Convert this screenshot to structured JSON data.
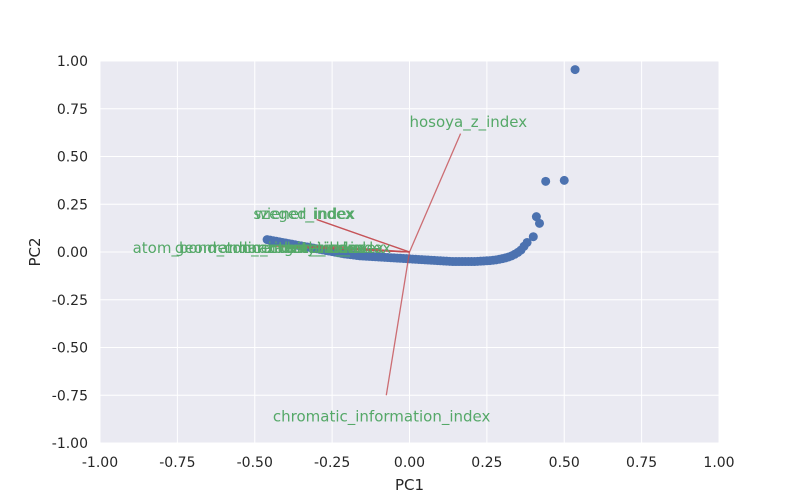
{
  "chart_data": {
    "type": "scatter",
    "title": "",
    "xlabel": "PC1",
    "ylabel": "PC2",
    "xlim": [
      -1.0,
      1.0
    ],
    "ylim": [
      -1.0,
      1.0
    ],
    "x_ticks": [
      "-1.00",
      "-0.75",
      "-0.50",
      "-0.25",
      "0.00",
      "0.25",
      "0.50",
      "0.75",
      "1.00"
    ],
    "y_ticks": [
      "1.00",
      "0.75",
      "0.50",
      "0.25",
      "0.00",
      "-0.25",
      "-0.50",
      "-0.75",
      "-1.00"
    ],
    "x_tick_values": [
      -1.0,
      -0.75,
      -0.5,
      -0.25,
      0.0,
      0.25,
      0.5,
      0.75,
      1.0
    ],
    "y_tick_values": [
      1.0,
      0.75,
      0.5,
      0.25,
      0.0,
      -0.25,
      -0.5,
      -0.75,
      -1.0
    ],
    "grid": true,
    "style": "seaborn-darkgrid",
    "colors": {
      "background": "#eaeaf2",
      "grid": "#ffffff",
      "points": "#4c72b0",
      "loadings": "#c44e52",
      "labels": "#55a868"
    },
    "points": {
      "x": [
        -0.46,
        -0.45,
        -0.44,
        -0.43,
        -0.42,
        -0.41,
        -0.4,
        -0.39,
        -0.38,
        -0.37,
        -0.36,
        -0.35,
        -0.34,
        -0.33,
        -0.32,
        -0.31,
        -0.3,
        -0.29,
        -0.28,
        -0.27,
        -0.26,
        -0.25,
        -0.24,
        -0.23,
        -0.22,
        -0.21,
        -0.2,
        -0.19,
        -0.18,
        -0.17,
        -0.16,
        -0.15,
        -0.14,
        -0.13,
        -0.12,
        -0.11,
        -0.1,
        -0.09,
        -0.08,
        -0.07,
        -0.06,
        -0.05,
        -0.04,
        -0.03,
        -0.02,
        -0.01,
        0.0,
        0.01,
        0.02,
        0.03,
        0.04,
        0.05,
        0.06,
        0.07,
        0.08,
        0.09,
        0.1,
        0.11,
        0.12,
        0.13,
        0.14,
        0.15,
        0.16,
        0.17,
        0.18,
        0.19,
        0.2,
        0.21,
        0.22,
        0.23,
        0.24,
        0.25,
        0.26,
        0.27,
        0.28,
        0.29,
        0.3,
        0.31,
        0.32,
        0.33,
        0.34,
        0.35,
        0.36,
        0.37,
        0.38,
        0.4,
        0.41,
        0.42,
        0.44,
        0.5,
        0.535
      ],
      "y": [
        0.065,
        0.062,
        0.059,
        0.056,
        0.053,
        0.05,
        0.047,
        0.044,
        0.041,
        0.038,
        0.035,
        0.032,
        0.029,
        0.026,
        0.023,
        0.02,
        0.017,
        0.014,
        0.011,
        0.008,
        0.005,
        0.002,
        -0.001,
        -0.004,
        -0.007,
        -0.01,
        -0.012,
        -0.014,
        -0.016,
        -0.018,
        -0.02,
        -0.021,
        -0.022,
        -0.023,
        -0.024,
        -0.025,
        -0.026,
        -0.027,
        -0.028,
        -0.029,
        -0.03,
        -0.031,
        -0.032,
        -0.033,
        -0.034,
        -0.035,
        -0.036,
        -0.037,
        -0.038,
        -0.039,
        -0.04,
        -0.041,
        -0.042,
        -0.043,
        -0.044,
        -0.045,
        -0.046,
        -0.047,
        -0.048,
        -0.049,
        -0.05,
        -0.05,
        -0.05,
        -0.05,
        -0.05,
        -0.05,
        -0.05,
        -0.05,
        -0.049,
        -0.048,
        -0.047,
        -0.046,
        -0.045,
        -0.043,
        -0.041,
        -0.038,
        -0.035,
        -0.031,
        -0.026,
        -0.02,
        -0.012,
        -0.002,
        0.01,
        0.03,
        0.05,
        0.08,
        0.185,
        0.15,
        0.37,
        0.375,
        0.955
      ]
    },
    "loadings": [
      {
        "label": "hosoya_z_index",
        "x": 0.165,
        "y": 0.62,
        "label_x": 0.19,
        "label_y": 0.68
      },
      {
        "label": "chromatic_information_index",
        "x": -0.075,
        "y": -0.75,
        "label_x": -0.09,
        "label_y": -0.86
      },
      {
        "label": "wiener_index",
        "x": -0.3,
        "y": 0.17,
        "label_x": -0.34,
        "label_y": 0.2
      },
      {
        "label": "szeged_index",
        "x": -0.3,
        "y": 0.17,
        "label_x": -0.34,
        "label_y": 0.2
      },
      {
        "label": "atom_bond_connectivity_index",
        "x": -0.45,
        "y": 0.03,
        "label_x": -0.52,
        "label_y": 0.02
      },
      {
        "label": "randic_index",
        "x": -0.4,
        "y": 0.03,
        "label_x": -0.48,
        "label_y": 0.02
      },
      {
        "label": "geometric_arithmetic_index",
        "x": -0.42,
        "y": 0.03,
        "label_x": -0.42,
        "label_y": 0.02
      },
      {
        "label": "harmonic_index",
        "x": -0.35,
        "y": 0.03,
        "label_x": -0.36,
        "label_y": 0.02
      },
      {
        "label": "zagreb_index",
        "x": -0.3,
        "y": 0.03,
        "label_x": -0.3,
        "label_y": 0.02
      },
      {
        "label": "estrada_index",
        "x": -0.25,
        "y": 0.03,
        "label_x": -0.23,
        "label_y": 0.02
      }
    ]
  }
}
